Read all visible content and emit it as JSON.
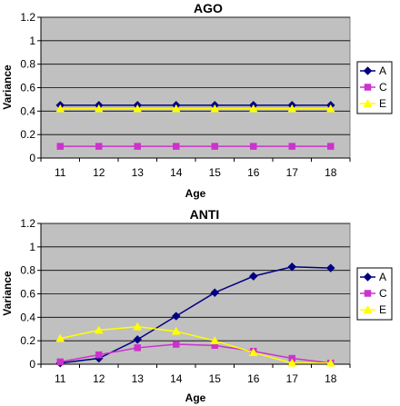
{
  "chart_data": [
    {
      "type": "line",
      "title": "AGO",
      "xlabel": "Age",
      "ylabel": "Variance",
      "x": [
        11,
        12,
        13,
        14,
        15,
        16,
        17,
        18
      ],
      "ylim": [
        0,
        1.2
      ],
      "yticks": [
        "0",
        "0.2",
        "0.4",
        "0.6",
        "0.8",
        "1",
        "1.2"
      ],
      "grid": true,
      "legend": "right",
      "series": [
        {
          "name": "A",
          "color": "#000080",
          "marker": "diamond",
          "values": [
            0.45,
            0.45,
            0.45,
            0.45,
            0.45,
            0.45,
            0.45,
            0.45
          ]
        },
        {
          "name": "C",
          "color": "#cc33cc",
          "marker": "square",
          "values": [
            0.1,
            0.1,
            0.1,
            0.1,
            0.1,
            0.1,
            0.1,
            0.1
          ]
        },
        {
          "name": "E",
          "color": "#ffff00",
          "marker": "triangle",
          "values": [
            0.42,
            0.42,
            0.42,
            0.42,
            0.42,
            0.42,
            0.42,
            0.42
          ]
        }
      ]
    },
    {
      "type": "line",
      "title": "ANTI",
      "xlabel": "Age",
      "ylabel": "Variance",
      "x": [
        11,
        12,
        13,
        14,
        15,
        16,
        17,
        18
      ],
      "ylim": [
        0,
        1.2
      ],
      "yticks": [
        "0",
        "0.2",
        "0.4",
        "0.6",
        "0.8",
        "1",
        "1.2"
      ],
      "grid": true,
      "legend": "right",
      "series": [
        {
          "name": "A",
          "color": "#000080",
          "marker": "diamond",
          "values": [
            0.01,
            0.05,
            0.21,
            0.41,
            0.61,
            0.75,
            0.83,
            0.82
          ]
        },
        {
          "name": "C",
          "color": "#cc33cc",
          "marker": "square",
          "values": [
            0.02,
            0.08,
            0.14,
            0.17,
            0.16,
            0.11,
            0.05,
            0.01
          ]
        },
        {
          "name": "E",
          "color": "#ffff00",
          "marker": "triangle",
          "values": [
            0.22,
            0.29,
            0.32,
            0.28,
            0.2,
            0.1,
            0.01,
            0.01
          ]
        }
      ]
    }
  ]
}
